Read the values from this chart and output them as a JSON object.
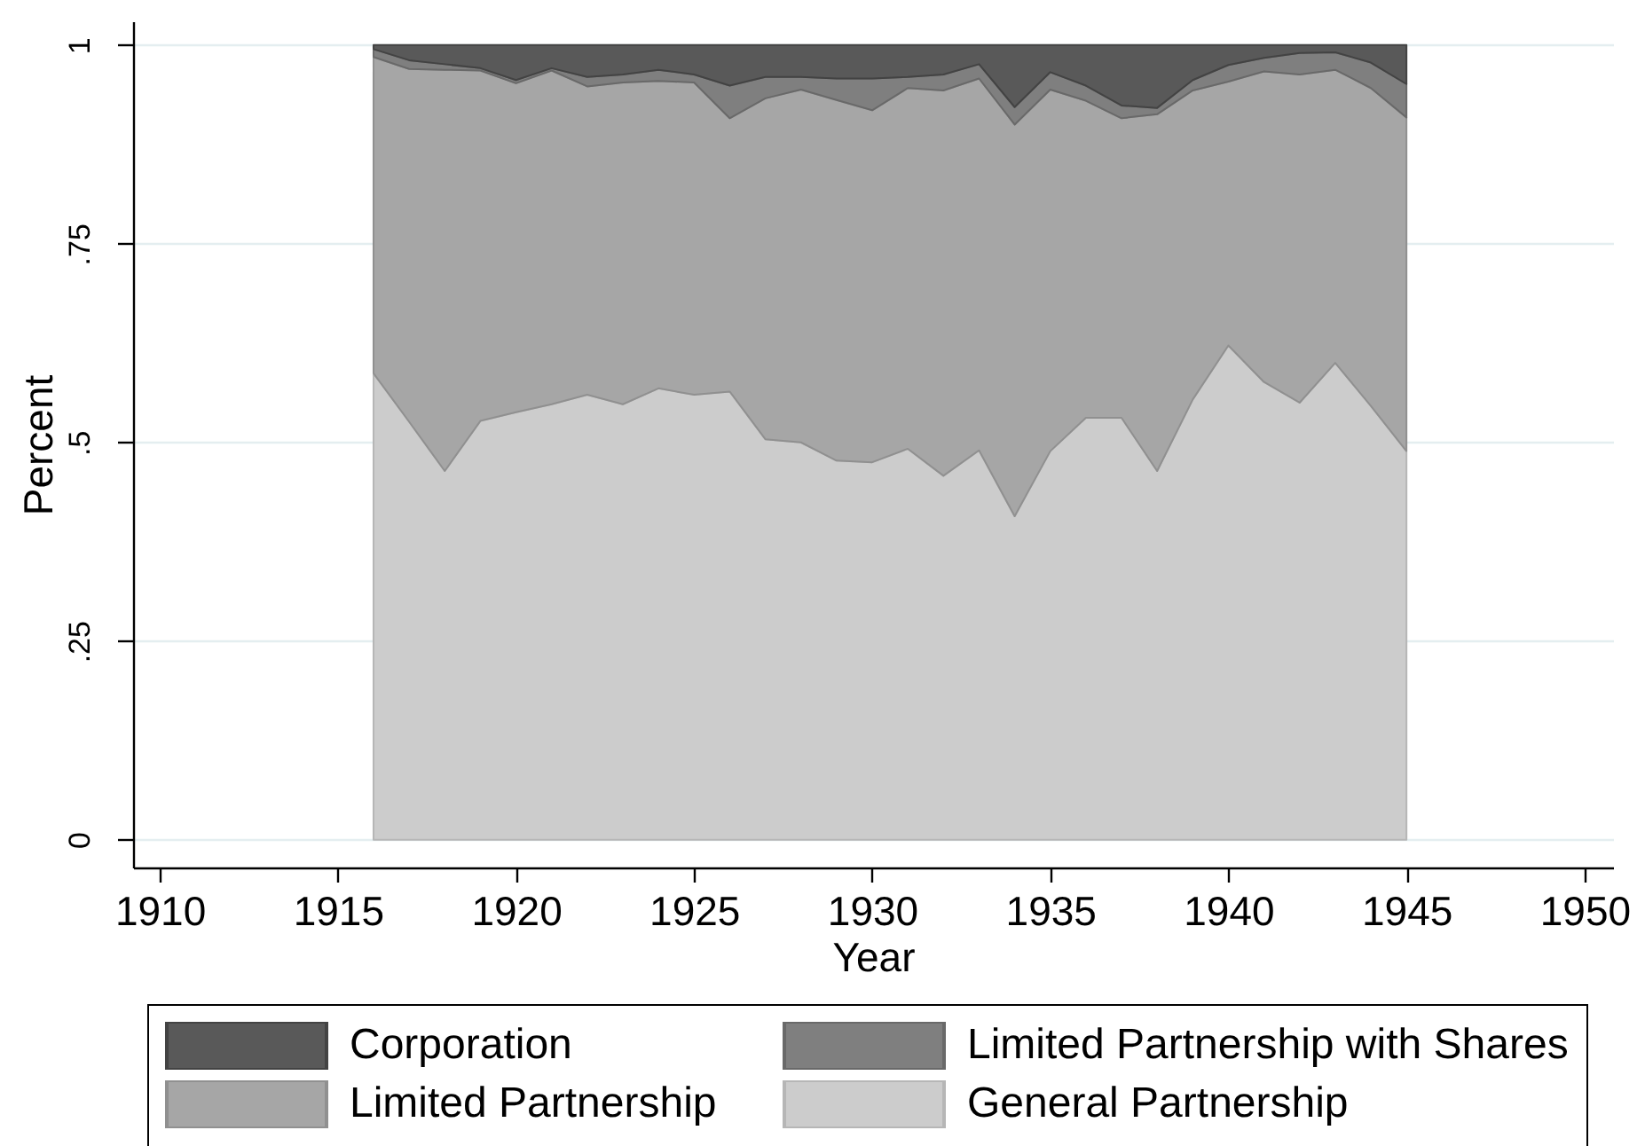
{
  "chart_data": {
    "type": "area",
    "xlabel": "Year",
    "ylabel": "Percent",
    "stacked": true,
    "grid": "y",
    "legend": "bottom",
    "x": [
      1916,
      1917,
      1918,
      1919,
      1920,
      1921,
      1922,
      1923,
      1924,
      1925,
      1926,
      1927,
      1928,
      1929,
      1930,
      1931,
      1932,
      1933,
      1934,
      1935,
      1936,
      1937,
      1938,
      1939,
      1940,
      1941,
      1942,
      1943,
      1944,
      1945
    ],
    "xlim": [
      1909.25,
      1950.8
    ],
    "xticks": [
      1910,
      1915,
      1920,
      1925,
      1930,
      1935,
      1940,
      1945,
      1950
    ],
    "ylim": [
      -0.035,
      1.03
    ],
    "yticks": [
      0,
      {
        "value": 0.25,
        "label": ".25"
      },
      {
        "value": 0.5,
        "label": ".5"
      },
      {
        "value": 0.75,
        "label": ".75"
      },
      1
    ],
    "series": [
      {
        "name": "General Partnership",
        "color": "#cccccc",
        "values": [
          0.587,
          0.526,
          0.464,
          0.527,
          0.538,
          0.548,
          0.56,
          0.548,
          0.568,
          0.56,
          0.564,
          0.504,
          0.5,
          0.477,
          0.475,
          0.492,
          0.458,
          0.49,
          0.407,
          0.489,
          0.531,
          0.531,
          0.464,
          0.554,
          0.622,
          0.576,
          0.55,
          0.6,
          0.546,
          0.489
        ]
      },
      {
        "name": "Limited Partnership",
        "color": "#a6a6a6",
        "values": [
          0.398,
          0.444,
          0.505,
          0.441,
          0.414,
          0.42,
          0.388,
          0.405,
          0.387,
          0.393,
          0.344,
          0.429,
          0.444,
          0.454,
          0.443,
          0.454,
          0.485,
          0.468,
          0.493,
          0.455,
          0.399,
          0.377,
          0.449,
          0.389,
          0.332,
          0.391,
          0.413,
          0.369,
          0.4,
          0.42
        ]
      },
      {
        "name": "Limited Partnership with Shares",
        "color": "#7f7f7f",
        "values": [
          0.01,
          0.011,
          0.007,
          0.003,
          0.004,
          0.003,
          0.012,
          0.01,
          0.014,
          0.01,
          0.041,
          0.027,
          0.016,
          0.027,
          0.04,
          0.014,
          0.02,
          0.018,
          0.022,
          0.022,
          0.019,
          0.016,
          0.008,
          0.013,
          0.021,
          0.017,
          0.027,
          0.022,
          0.032,
          0.042
        ]
      },
      {
        "name": "Corporation",
        "color": "#595959",
        "values": [
          0.005,
          0.019,
          0.024,
          0.029,
          0.044,
          0.029,
          0.04,
          0.037,
          0.031,
          0.037,
          0.051,
          0.04,
          0.04,
          0.042,
          0.042,
          0.04,
          0.037,
          0.024,
          0.078,
          0.034,
          0.051,
          0.076,
          0.079,
          0.044,
          0.025,
          0.016,
          0.01,
          0.009,
          0.022,
          0.049
        ]
      }
    ]
  }
}
